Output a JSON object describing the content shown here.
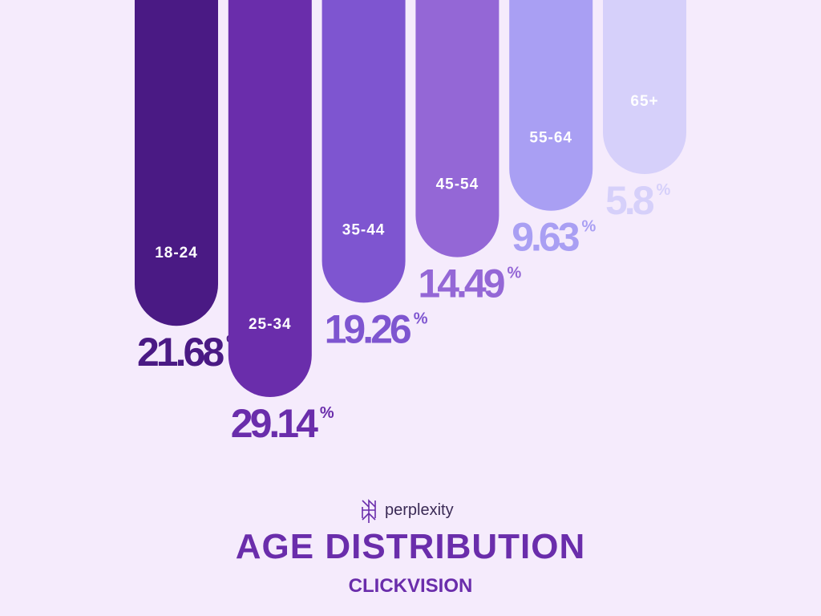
{
  "chart_data": {
    "type": "bar",
    "title": "AGE DISTRIBUTION",
    "categories": [
      "18-24",
      "25-34",
      "35-44",
      "45-54",
      "55-64",
      "65+"
    ],
    "values": [
      21.68,
      29.14,
      19.26,
      14.49,
      9.63,
      5.8
    ],
    "unit": "%",
    "colors": [
      "#4a1a84",
      "#6a2dab",
      "#7e55d0",
      "#9467d6",
      "#a99ff3",
      "#d6d0fa"
    ]
  },
  "brand": {
    "top_logo": "perplexity",
    "bottom_logo": "CLICKVISION"
  }
}
